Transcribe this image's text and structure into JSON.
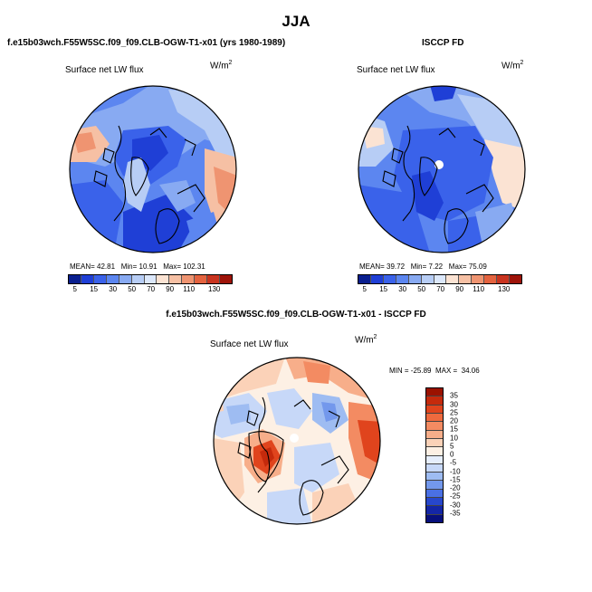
{
  "title": "JJA",
  "panels": {
    "model": {
      "title": "f.e15b03wch.F55W5SC.f09_f09.CLB-OGW-T1-x01 (yrs 1980-1989)",
      "variable": "Surface net LW flux",
      "units_base": "W/m",
      "units_exp": "2",
      "stats": {
        "mean_label": "MEAN=",
        "mean": "42.81",
        "min_label": "Min=",
        "min": "10.91",
        "max_label": "Max=",
        "max": "102.31"
      }
    },
    "obs": {
      "title": "ISCCP FD",
      "variable": "Surface net LW flux",
      "units_base": "W/m",
      "units_exp": "2",
      "stats": {
        "mean_label": "MEAN=",
        "mean": "39.72",
        "min_label": "Min=",
        "min": "7.22",
        "max_label": "Max=",
        "max": "75.09"
      }
    },
    "diff": {
      "title": "f.e15b03wch.F55W5SC.f09_f09.CLB-OGW-T1-x01 - ISCCP FD",
      "variable": "Surface net LW flux",
      "units_base": "W/m",
      "units_exp": "2",
      "stats": {
        "min_label": "MIN =",
        "min": "-25.89",
        "max_label": "MAX =",
        "max": "34.06"
      }
    }
  },
  "abs_colorbar": {
    "colors": [
      "#0a1f8f",
      "#1f3fd6",
      "#3a62ea",
      "#5c86f0",
      "#88aaf2",
      "#b7cdf5",
      "#dce8fb",
      "#fbe3d3",
      "#f6c0a4",
      "#ef9471",
      "#e4633f",
      "#c9341f",
      "#9e1309"
    ],
    "tick_labels": [
      "5",
      "15",
      "30",
      "50",
      "70",
      "90",
      "110",
      "130"
    ]
  },
  "diff_colorbar": {
    "colors": [
      "#9b1200",
      "#c52a0c",
      "#e0441d",
      "#ef6a3e",
      "#f38b62",
      "#f7ae8a",
      "#fbd2b8",
      "#fdf0e4",
      "#e6eefc",
      "#c7d8f8",
      "#9ebcf2",
      "#7398ec",
      "#4a70e4",
      "#2747cc",
      "#1426a6",
      "#070f7c"
    ],
    "tick_labels": [
      "35",
      "30",
      "25",
      "20",
      "15",
      "10",
      "5",
      "0",
      "-5",
      "-10",
      "-15",
      "-20",
      "-25",
      "-30",
      "-35"
    ]
  }
}
